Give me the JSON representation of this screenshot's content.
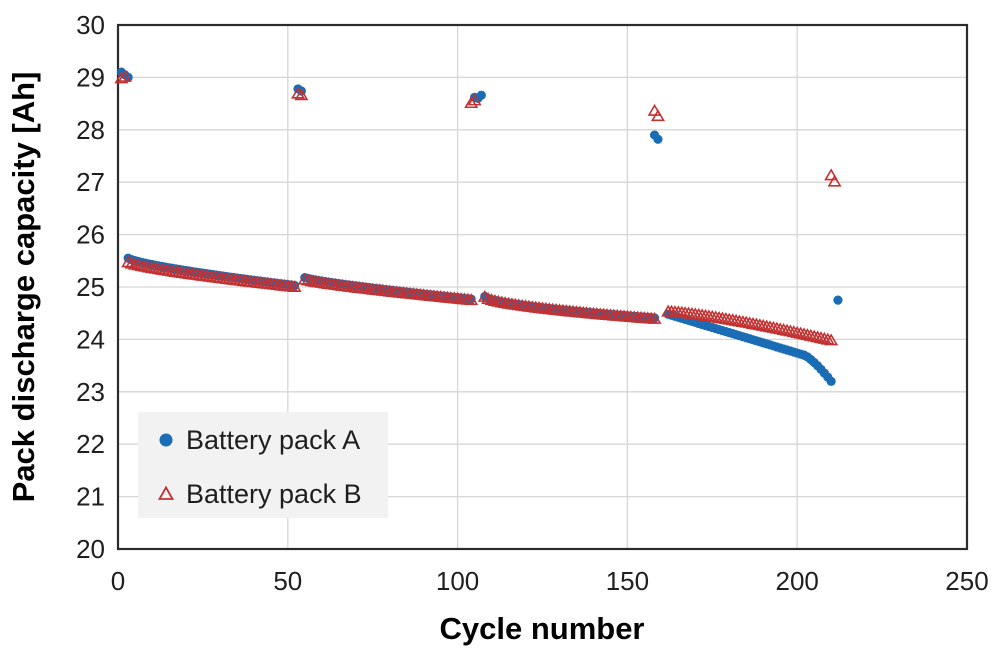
{
  "chart_data": {
    "type": "scatter",
    "title": "",
    "xlabel": "Cycle number",
    "ylabel": "Pack discharge capacity [Ah]",
    "xlim": [
      0,
      250
    ],
    "ylim": [
      20,
      30
    ],
    "xticks": [
      0,
      50,
      100,
      150,
      200,
      250
    ],
    "yticks": [
      20,
      21,
      22,
      23,
      24,
      25,
      26,
      27,
      28,
      29,
      30
    ],
    "grid": true,
    "legend_position": "inside-lower-left",
    "series": [
      {
        "name": "Battery pack A",
        "marker": "circle",
        "color": "#1A6CB5",
        "marker_radius": 4.6,
        "check_points": [
          [
            1,
            29.1
          ],
          [
            2,
            29.05
          ],
          [
            3,
            29.0
          ],
          [
            53,
            28.78
          ],
          [
            54,
            28.74
          ],
          [
            105,
            28.62
          ],
          [
            106,
            28.6
          ],
          [
            107,
            28.66
          ],
          [
            158,
            27.9
          ],
          [
            159,
            27.82
          ],
          [
            212,
            24.75
          ]
        ],
        "band_segments": [
          {
            "from": 3,
            "to": 52,
            "start": 25.55,
            "end": 25.03,
            "power": 0.75
          },
          {
            "from": 55,
            "to": 104,
            "start": 25.18,
            "end": 24.77,
            "power": 0.8
          },
          {
            "from": 108,
            "to": 158,
            "start": 24.82,
            "end": 24.41,
            "power": 0.6
          },
          {
            "from": 162,
            "to": 202,
            "start": 24.48,
            "end": 23.7,
            "power": 1.0
          },
          {
            "from": 202,
            "to": 210,
            "start": 23.7,
            "end": 23.2,
            "power": 1.3
          }
        ]
      },
      {
        "name": "Battery pack B",
        "marker": "triangle-open",
        "color": "#C33232",
        "marker_half_width": 5.6,
        "marker_height": 9.6,
        "check_points": [
          [
            1,
            28.97
          ],
          [
            2,
            29.0
          ],
          [
            53,
            28.68
          ],
          [
            54,
            28.65
          ],
          [
            104,
            28.5
          ],
          [
            105,
            28.55
          ],
          [
            158,
            28.35
          ],
          [
            159,
            28.25
          ],
          [
            210,
            27.12
          ],
          [
            211,
            27.0
          ]
        ],
        "band_segments": [
          {
            "from": 3,
            "to": 52,
            "start": 25.46,
            "end": 24.99,
            "power": 0.75
          },
          {
            "from": 55,
            "to": 104,
            "start": 25.13,
            "end": 24.74,
            "power": 0.8
          },
          {
            "from": 108,
            "to": 158,
            "start": 24.8,
            "end": 24.38,
            "power": 0.6
          },
          {
            "from": 162,
            "to": 210,
            "start": 24.52,
            "end": 23.97,
            "power": 1.3
          }
        ]
      }
    ]
  },
  "legend": {
    "items": [
      {
        "label": "Battery pack A"
      },
      {
        "label": "Battery pack B"
      }
    ]
  },
  "style": {
    "grid_color": "#D6D6D6",
    "axis_color": "#2B2B2B",
    "legend_background": "#F2F2F2",
    "background": "#FFFFFF"
  }
}
